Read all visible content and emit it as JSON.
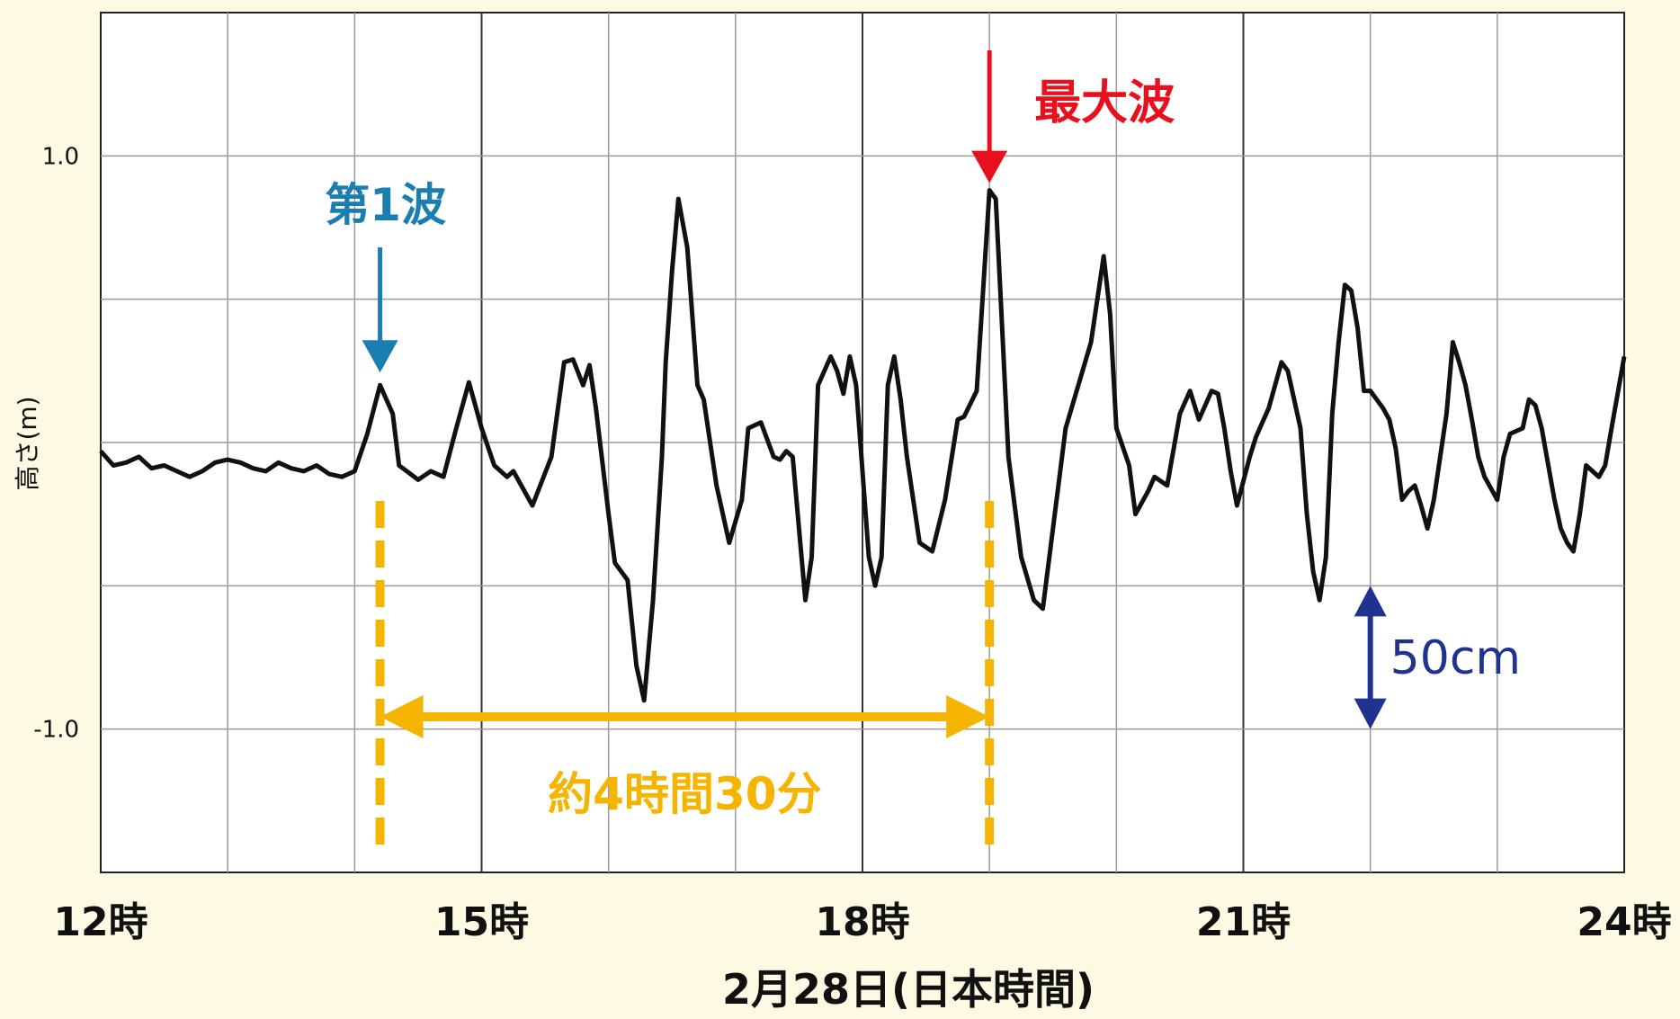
{
  "chart_data": {
    "type": "line",
    "title": "",
    "xlabel": "2月28日(日本時間)",
    "ylabel": "高さ(m)",
    "xlim": [
      12,
      24
    ],
    "ylim": [
      -1.5,
      1.5
    ],
    "x_ticks": [
      {
        "value": 12,
        "label": "12時"
      },
      {
        "value": 15,
        "label": "15時"
      },
      {
        "value": 18,
        "label": "18時"
      },
      {
        "value": 21,
        "label": "21時"
      },
      {
        "value": 24,
        "label": "24時"
      }
    ],
    "y_ticks": [
      {
        "value": 1.0,
        "label": "1.0"
      },
      {
        "value": -1.0,
        "label": "-1.0"
      }
    ],
    "grid": true,
    "series": [
      {
        "color": "#111111",
        "points": [
          [
            12.0,
            -0.03
          ],
          [
            12.1,
            -0.08
          ],
          [
            12.2,
            -0.07
          ],
          [
            12.3,
            -0.05
          ],
          [
            12.4,
            -0.09
          ],
          [
            12.5,
            -0.08
          ],
          [
            12.6,
            -0.1
          ],
          [
            12.7,
            -0.12
          ],
          [
            12.8,
            -0.1
          ],
          [
            12.9,
            -0.07
          ],
          [
            13.0,
            -0.06
          ],
          [
            13.1,
            -0.07
          ],
          [
            13.2,
            -0.09
          ],
          [
            13.3,
            -0.1
          ],
          [
            13.4,
            -0.07
          ],
          [
            13.5,
            -0.09
          ],
          [
            13.6,
            -0.1
          ],
          [
            13.7,
            -0.08
          ],
          [
            13.8,
            -0.11
          ],
          [
            13.9,
            -0.12
          ],
          [
            14.0,
            -0.1
          ],
          [
            14.1,
            0.03
          ],
          [
            14.2,
            0.2
          ],
          [
            14.3,
            0.1
          ],
          [
            14.35,
            -0.08
          ],
          [
            14.5,
            -0.13
          ],
          [
            14.6,
            -0.1
          ],
          [
            14.7,
            -0.12
          ],
          [
            14.8,
            0.05
          ],
          [
            14.9,
            0.21
          ],
          [
            15.0,
            0.05
          ],
          [
            15.1,
            -0.08
          ],
          [
            15.2,
            -0.12
          ],
          [
            15.25,
            -0.1
          ],
          [
            15.4,
            -0.22
          ],
          [
            15.55,
            -0.05
          ],
          [
            15.65,
            0.28
          ],
          [
            15.72,
            0.29
          ],
          [
            15.8,
            0.2
          ],
          [
            15.85,
            0.27
          ],
          [
            15.9,
            0.12
          ],
          [
            16.0,
            -0.25
          ],
          [
            16.05,
            -0.42
          ],
          [
            16.15,
            -0.48
          ],
          [
            16.22,
            -0.78
          ],
          [
            16.28,
            -0.9
          ],
          [
            16.35,
            -0.55
          ],
          [
            16.42,
            -0.05
          ],
          [
            16.45,
            0.28
          ],
          [
            16.5,
            0.6
          ],
          [
            16.55,
            0.85
          ],
          [
            16.62,
            0.68
          ],
          [
            16.7,
            0.2
          ],
          [
            16.75,
            0.15
          ],
          [
            16.85,
            -0.15
          ],
          [
            16.95,
            -0.35
          ],
          [
            17.05,
            -0.2
          ],
          [
            17.1,
            0.05
          ],
          [
            17.2,
            0.07
          ],
          [
            17.3,
            -0.05
          ],
          [
            17.35,
            -0.06
          ],
          [
            17.4,
            -0.03
          ],
          [
            17.45,
            -0.05
          ],
          [
            17.5,
            -0.3
          ],
          [
            17.55,
            -0.55
          ],
          [
            17.6,
            -0.4
          ],
          [
            17.65,
            0.2
          ],
          [
            17.75,
            0.3
          ],
          [
            17.8,
            0.25
          ],
          [
            17.85,
            0.17
          ],
          [
            17.9,
            0.3
          ],
          [
            17.95,
            0.2
          ],
          [
            18.0,
            -0.1
          ],
          [
            18.05,
            -0.4
          ],
          [
            18.1,
            -0.5
          ],
          [
            18.15,
            -0.4
          ],
          [
            18.2,
            0.2
          ],
          [
            18.25,
            0.3
          ],
          [
            18.3,
            0.15
          ],
          [
            18.35,
            -0.05
          ],
          [
            18.45,
            -0.35
          ],
          [
            18.55,
            -0.38
          ],
          [
            18.65,
            -0.2
          ],
          [
            18.75,
            0.08
          ],
          [
            18.8,
            0.09
          ],
          [
            18.9,
            0.18
          ],
          [
            19.0,
            0.88
          ],
          [
            19.05,
            0.85
          ],
          [
            19.1,
            0.4
          ],
          [
            19.15,
            -0.05
          ],
          [
            19.25,
            -0.4
          ],
          [
            19.35,
            -0.55
          ],
          [
            19.42,
            -0.58
          ],
          [
            19.5,
            -0.3
          ],
          [
            19.6,
            0.05
          ],
          [
            19.7,
            0.2
          ],
          [
            19.8,
            0.35
          ],
          [
            19.9,
            0.65
          ],
          [
            19.95,
            0.45
          ],
          [
            20.0,
            0.05
          ],
          [
            20.1,
            -0.08
          ],
          [
            20.15,
            -0.25
          ],
          [
            20.25,
            -0.17
          ],
          [
            20.3,
            -0.12
          ],
          [
            20.4,
            -0.15
          ],
          [
            20.5,
            0.1
          ],
          [
            20.58,
            0.18
          ],
          [
            20.65,
            0.08
          ],
          [
            20.75,
            0.18
          ],
          [
            20.8,
            0.17
          ],
          [
            20.85,
            0.05
          ],
          [
            20.9,
            -0.1
          ],
          [
            20.95,
            -0.22
          ],
          [
            21.05,
            -0.05
          ],
          [
            21.1,
            0.02
          ],
          [
            21.2,
            0.12
          ],
          [
            21.3,
            0.28
          ],
          [
            21.35,
            0.25
          ],
          [
            21.45,
            0.05
          ],
          [
            21.5,
            -0.25
          ],
          [
            21.55,
            -0.45
          ],
          [
            21.6,
            -0.55
          ],
          [
            21.65,
            -0.4
          ],
          [
            21.7,
            0.1
          ],
          [
            21.75,
            0.35
          ],
          [
            21.8,
            0.55
          ],
          [
            21.85,
            0.53
          ],
          [
            21.9,
            0.4
          ],
          [
            21.95,
            0.18
          ],
          [
            22.0,
            0.18
          ],
          [
            22.1,
            0.12
          ],
          [
            22.15,
            0.08
          ],
          [
            22.2,
            -0.02
          ],
          [
            22.25,
            -0.2
          ],
          [
            22.3,
            -0.17
          ],
          [
            22.35,
            -0.15
          ],
          [
            22.4,
            -0.22
          ],
          [
            22.45,
            -0.3
          ],
          [
            22.5,
            -0.2
          ],
          [
            22.6,
            0.1
          ],
          [
            22.65,
            0.35
          ],
          [
            22.7,
            0.28
          ],
          [
            22.75,
            0.2
          ],
          [
            22.8,
            0.08
          ],
          [
            22.85,
            -0.05
          ],
          [
            22.9,
            -0.12
          ],
          [
            23.0,
            -0.2
          ],
          [
            23.05,
            -0.05
          ],
          [
            23.1,
            0.03
          ],
          [
            23.2,
            0.05
          ],
          [
            23.25,
            0.15
          ],
          [
            23.3,
            0.13
          ],
          [
            23.35,
            0.05
          ],
          [
            23.45,
            -0.2
          ],
          [
            23.5,
            -0.3
          ],
          [
            23.55,
            -0.35
          ],
          [
            23.6,
            -0.38
          ],
          [
            23.65,
            -0.25
          ],
          [
            23.7,
            -0.08
          ],
          [
            23.8,
            -0.12
          ],
          [
            23.85,
            -0.08
          ],
          [
            23.9,
            0.05
          ],
          [
            24.0,
            0.3
          ]
        ]
      }
    ],
    "annotations": [
      {
        "text": "第1波",
        "x": 14.2,
        "y": 0.2,
        "color": "#1a7fb0"
      },
      {
        "text": "最大波",
        "x": 19.0,
        "y": 0.88,
        "color": "#e8101c"
      },
      {
        "text": "約4時間30分",
        "x_start": 14.2,
        "x_end": 19.0,
        "color": "#f5b400"
      },
      {
        "text": "50cm",
        "x": 22.0,
        "y_start": -0.5,
        "y_end": -1.0,
        "color": "#1f3290"
      }
    ]
  }
}
